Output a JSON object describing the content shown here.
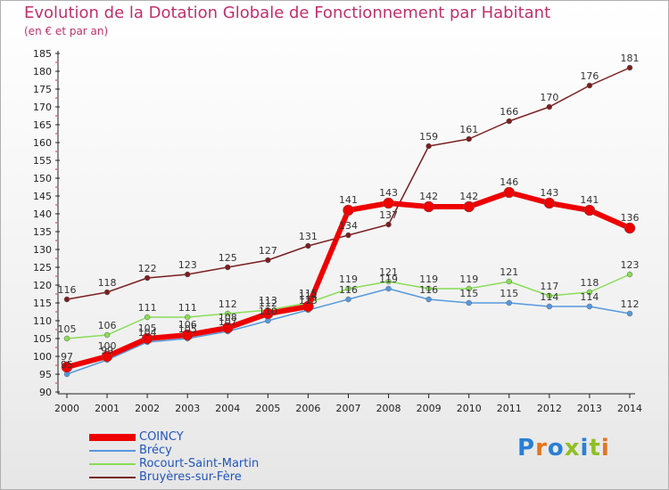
{
  "chart_data": {
    "type": "line",
    "title": "Evolution de la Dotation Globale de Fonctionnement par Habitant",
    "subtitle": "(en € et par an)",
    "x": [
      "2000",
      "2001",
      "2002",
      "2003",
      "2004",
      "2005",
      "2006",
      "2007",
      "2008",
      "2009",
      "2010",
      "2011",
      "2012",
      "2013",
      "2014"
    ],
    "ylim": [
      90,
      185
    ],
    "yticks": [
      90,
      95,
      100,
      105,
      110,
      115,
      120,
      125,
      130,
      135,
      140,
      145,
      150,
      155,
      160,
      165,
      170,
      175,
      180,
      185
    ],
    "grid": false,
    "series": [
      {
        "name": "Bruyères-sur-Fère",
        "color": "#7a1e1e",
        "values": [
          116,
          118,
          122,
          123,
          125,
          127,
          131,
          134,
          137,
          159,
          161,
          166,
          170,
          176,
          181
        ]
      },
      {
        "name": "Rocourt-Saint-Martin",
        "color": "#88dd55",
        "values": [
          105,
          106,
          111,
          111,
          112,
          113,
          115,
          119,
          121,
          119,
          119,
          121,
          117,
          118,
          123
        ]
      },
      {
        "name": "Brécy",
        "color": "#5599dd",
        "values": [
          95,
          99,
          104,
          105,
          107,
          110,
          113,
          116,
          119,
          116,
          115,
          115,
          114,
          114,
          112
        ]
      },
      {
        "name": "COINCY",
        "color": "#ee0000",
        "values": [
          97,
          100,
          105,
          106,
          108,
          112,
          114,
          141,
          143,
          142,
          142,
          146,
          143,
          141,
          136
        ]
      }
    ],
    "legend": [
      "COINCY",
      "Brécy",
      "Rocourt-Saint-Martin",
      "Bruyères-sur-Fère"
    ]
  },
  "logo": {
    "text": "Proxiti"
  }
}
